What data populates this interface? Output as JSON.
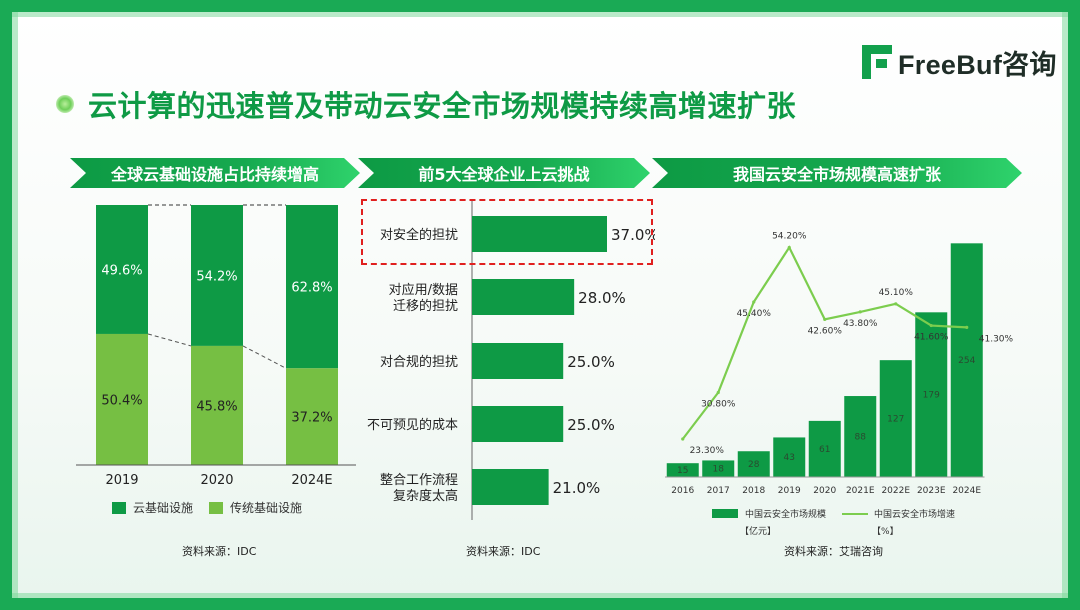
{
  "logo": {
    "brand": "FreeBuf咨询",
    "icon": "freebuf-logo-icon"
  },
  "title": "云计算的迅速普及带动云安全市场规模持续高增速扩张",
  "colors": {
    "dark_green": "#0e9a45",
    "light_green": "#76bf43",
    "line_green": "#7ccd4e",
    "highlight_red": "#e0201f"
  },
  "panels": [
    {
      "heading": "全球云基础设施占比持续增高",
      "source": "资料来源：IDC"
    },
    {
      "heading": "前5大全球企业上云挑战",
      "source": "资料来源：IDC"
    },
    {
      "heading": "我国云安全市场规模高速扩张",
      "source": "资料来源：艾瑞咨询"
    }
  ],
  "chart_data": [
    {
      "type": "bar",
      "stacked": true,
      "percent": true,
      "categories": [
        "2019",
        "2020",
        "2024E"
      ],
      "series": [
        {
          "name": "云基础设施",
          "values": [
            49.6,
            54.2,
            62.8
          ],
          "labels": [
            "49.6%",
            "54.2%",
            "62.8%"
          ],
          "color": "#0e9a45"
        },
        {
          "name": "传统基础设施",
          "values": [
            50.4,
            45.8,
            37.2
          ],
          "labels": [
            "50.4%",
            "45.8%",
            "37.2%"
          ],
          "color": "#76bf43"
        }
      ],
      "ylim": [
        0,
        100
      ],
      "legend": "bottom"
    },
    {
      "type": "bar",
      "orientation": "horizontal",
      "categories": [
        [
          "对安全的担扰"
        ],
        [
          "对应用/数据",
          "迁移的担扰"
        ],
        [
          "对合规的担扰"
        ],
        [
          "不可预见的成本"
        ],
        [
          "整合工作流程",
          "复杂度太高"
        ]
      ],
      "values": [
        37.0,
        28.0,
        25.0,
        25.0,
        21.0
      ],
      "labels": [
        "37.0%",
        "28.0%",
        "25.0%",
        "25.0%",
        "21.0%"
      ],
      "xlim": [
        0,
        40
      ],
      "highlight_index": 0,
      "color": "#0e9a45"
    },
    {
      "type": "bar+line",
      "categories": [
        "2016",
        "2017",
        "2018",
        "2019",
        "2020",
        "2021E",
        "2022E",
        "2023E",
        "2024E"
      ],
      "series": [
        {
          "name": "中国云安全市场规模",
          "unit": "【亿元】",
          "type": "bar",
          "values": [
            15,
            18,
            28,
            43,
            61,
            88,
            127,
            179,
            254
          ],
          "color": "#0e9a45"
        },
        {
          "name": "中国云安全市场增速",
          "unit": "【%】",
          "type": "line",
          "values": [
            23.3,
            30.8,
            45.4,
            54.2,
            42.6,
            43.8,
            45.1,
            41.6,
            41.3
          ],
          "labels": [
            "23.30%",
            "30.80%",
            "45.40%",
            "54.20%",
            "42.60%",
            "43.80%",
            "45.10%",
            "41.60%",
            "41.30%"
          ],
          "color": "#7ccd4e"
        }
      ],
      "legend": "bottom"
    }
  ]
}
